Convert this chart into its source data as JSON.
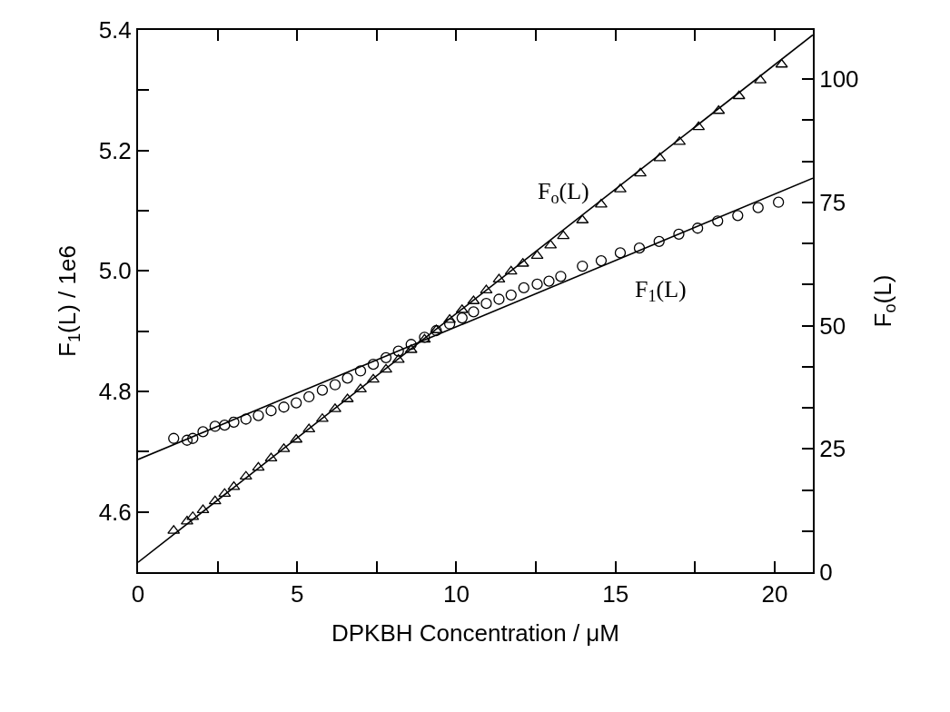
{
  "chart_data": {
    "type": "scatter",
    "xlabel": "DPKBH Concentration / μM",
    "ylabel": "F$_{1}$(L) / 1e6",
    "y2label": "F$_{o}$(L)",
    "xlim": [
      0,
      21.2
    ],
    "xticks": [
      0,
      {
        "value": 2.5,
        "label": null
      },
      5,
      {
        "value": 7.5,
        "label": null
      },
      10,
      {
        "value": 12.5,
        "label": null
      },
      15,
      {
        "value": 17.5,
        "label": null
      },
      20
    ],
    "ylim": [
      4.5,
      5.4
    ],
    "yticks": [
      {
        "value": 4.5,
        "label": null
      },
      4.6,
      {
        "value": 4.7,
        "label": null
      },
      4.8,
      {
        "value": 4.9,
        "label": null
      },
      {
        "value": 5.0,
        "label": "5.0"
      },
      {
        "value": 5.1,
        "label": null
      },
      5.2,
      {
        "value": 5.3,
        "label": null
      },
      5.4
    ],
    "y2lim": [
      0,
      110
    ],
    "y2ticks": [
      0,
      {
        "value": 8.33,
        "label": null
      },
      {
        "value": 16.67,
        "label": null
      },
      25,
      {
        "value": 33.33,
        "label": null
      },
      {
        "value": 41.67,
        "label": null
      },
      50,
      {
        "value": 58.33,
        "label": null
      },
      {
        "value": 66.67,
        "label": null
      },
      75,
      {
        "value": 83.33,
        "label": null
      },
      {
        "value": 91.67,
        "label": null
      },
      100
    ],
    "grid": false,
    "annotations": [
      "F$_{o}$(L)",
      "F$_{1}$(L)"
    ],
    "series": [
      {
        "marker": "circle",
        "color": "#000000",
        "x": [
          1.12,
          1.54,
          1.72,
          2.04,
          2.42,
          2.72,
          3.01,
          3.39,
          3.78,
          4.18,
          4.58,
          4.97,
          5.37,
          5.79,
          6.19,
          6.58,
          6.99,
          7.39,
          7.79,
          8.18,
          8.58,
          9.0,
          9.37,
          9.79,
          10.18,
          10.54,
          10.94,
          11.34,
          11.72,
          12.12,
          12.54,
          12.91,
          13.28,
          13.96,
          14.55,
          15.15,
          15.75,
          16.37,
          16.99,
          17.58,
          18.21,
          18.84,
          19.48,
          20.12
        ],
        "values": [
          4.722,
          4.719,
          4.722,
          4.733,
          4.742,
          4.744,
          4.749,
          4.754,
          4.76,
          4.768,
          4.774,
          4.781,
          4.791,
          4.802,
          4.811,
          4.822,
          4.834,
          4.845,
          4.856,
          4.867,
          4.878,
          4.89,
          4.901,
          4.912,
          4.922,
          4.932,
          4.946,
          4.953,
          4.96,
          4.972,
          4.978,
          4.983,
          4.991,
          5.008,
          5.017,
          5.03,
          5.038,
          5.049,
          5.061,
          5.071,
          5.083,
          5.092,
          5.105,
          5.114
        ]
      },
      {
        "marker": "triangle",
        "axis": "y2",
        "color": "#000000",
        "x": [
          1.12,
          1.54,
          1.72,
          2.04,
          2.42,
          2.72,
          3.01,
          3.39,
          3.78,
          4.18,
          4.58,
          4.97,
          5.37,
          5.79,
          6.19,
          6.58,
          6.99,
          7.39,
          7.79,
          8.18,
          8.58,
          9.0,
          9.37,
          9.79,
          10.18,
          10.54,
          10.94,
          11.34,
          11.72,
          12.09,
          12.54,
          12.96,
          13.36,
          13.96,
          14.55,
          15.15,
          15.78,
          16.39,
          17.01,
          17.61,
          18.24,
          18.88,
          19.55,
          20.22
        ],
        "values": [
          8.4,
          10.3,
          11.2,
          12.6,
          14.4,
          15.9,
          17.3,
          19.4,
          21.2,
          23.1,
          25.0,
          26.9,
          29.0,
          31.1,
          33.1,
          35.1,
          37.1,
          39.1,
          41.1,
          43.1,
          45.1,
          47.2,
          49.1,
          51.2,
          53.2,
          55.0,
          57.2,
          59.4,
          61.0,
          62.6,
          64.2,
          66.3,
          68.2,
          71.4,
          74.6,
          77.7,
          80.9,
          84.0,
          87.3,
          90.3,
          93.6,
          96.6,
          99.8,
          103.0
        ]
      },
      {
        "type": "line",
        "marker": "none",
        "line_style": "solid",
        "color": "#000000",
        "x": [
          0,
          21.2
        ],
        "values": [
          4.687,
          5.154
        ]
      },
      {
        "type": "line",
        "marker": "none",
        "line_style": "solid",
        "axis": "y2",
        "color": "#000000",
        "x": [
          0,
          21.2
        ],
        "values": [
          2,
          109
        ]
      }
    ]
  }
}
